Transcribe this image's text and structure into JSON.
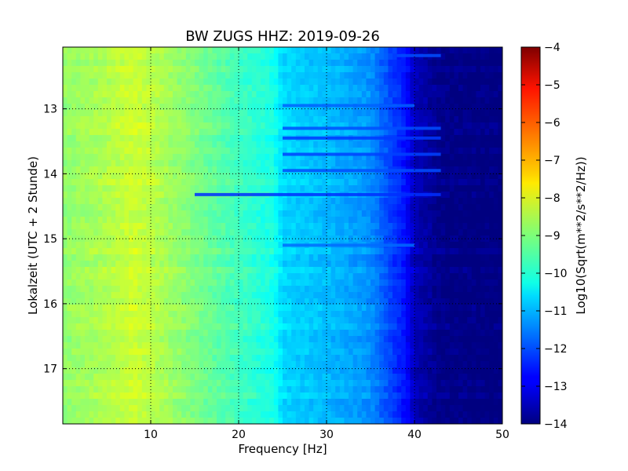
{
  "chart_data": {
    "type": "heatmap",
    "title": "BW ZUGS HHZ: 2019-09-26",
    "xlabel": "Frequency [Hz]",
    "ylabel": "Lokalzeit (UTC + 2 Stunde)",
    "xlim": [
      0,
      50
    ],
    "ylim": [
      12.05,
      17.85
    ],
    "y_inverted": true,
    "xticks": [
      10,
      20,
      30,
      40,
      50
    ],
    "xtick_labels": [
      "10",
      "20",
      "30",
      "40",
      "50"
    ],
    "yticks": [
      13,
      14,
      15,
      16,
      17
    ],
    "ytick_labels": [
      "13",
      "14",
      "15",
      "16",
      "17"
    ],
    "grid": true,
    "colormap": "jet",
    "colorbar": {
      "label": "Log10(Sqrt(m**2/s**2/Hz))",
      "vmin": -14,
      "vmax": -4,
      "ticks": [
        -4,
        -5,
        -6,
        -7,
        -8,
        -9,
        -10,
        -11,
        -12,
        -13,
        -14
      ],
      "tick_labels": [
        "−4",
        "−5",
        "−6",
        "−7",
        "−8",
        "−9",
        "−10",
        "−11",
        "−12",
        "−13",
        "−14"
      ]
    },
    "level_profile": {
      "frequency_hz": [
        0,
        5,
        8,
        10,
        15,
        20,
        24,
        25,
        30,
        35,
        37,
        39,
        40,
        43,
        50
      ],
      "log10_psd": [
        -8.8,
        -8.5,
        -8.2,
        -8.4,
        -9.0,
        -9.6,
        -10.0,
        -10.6,
        -10.9,
        -11.3,
        -12.0,
        -12.6,
        -13.4,
        -13.9,
        -14.0
      ]
    },
    "bands": [
      {
        "time_hours": 12.18,
        "freq_range_hz": [
          38,
          43
        ],
        "log10_psd": -12.0
      },
      {
        "time_hours": 12.95,
        "freq_range_hz": [
          25,
          40
        ],
        "log10_psd": -11.8
      },
      {
        "time_hours": 13.3,
        "freq_range_hz": [
          25,
          43
        ],
        "log10_psd": -12.0
      },
      {
        "time_hours": 13.45,
        "freq_range_hz": [
          25,
          43
        ],
        "log10_psd": -12.2
      },
      {
        "time_hours": 13.7,
        "freq_range_hz": [
          25,
          43
        ],
        "log10_psd": -12.1
      },
      {
        "time_hours": 13.95,
        "freq_range_hz": [
          25,
          43
        ],
        "log10_psd": -12.0
      },
      {
        "time_hours": 14.32,
        "freq_range_hz": [
          15,
          43
        ],
        "log10_psd": -12.3
      },
      {
        "time_hours": 15.1,
        "freq_range_hz": [
          25,
          40
        ],
        "log10_psd": -11.7
      }
    ]
  }
}
